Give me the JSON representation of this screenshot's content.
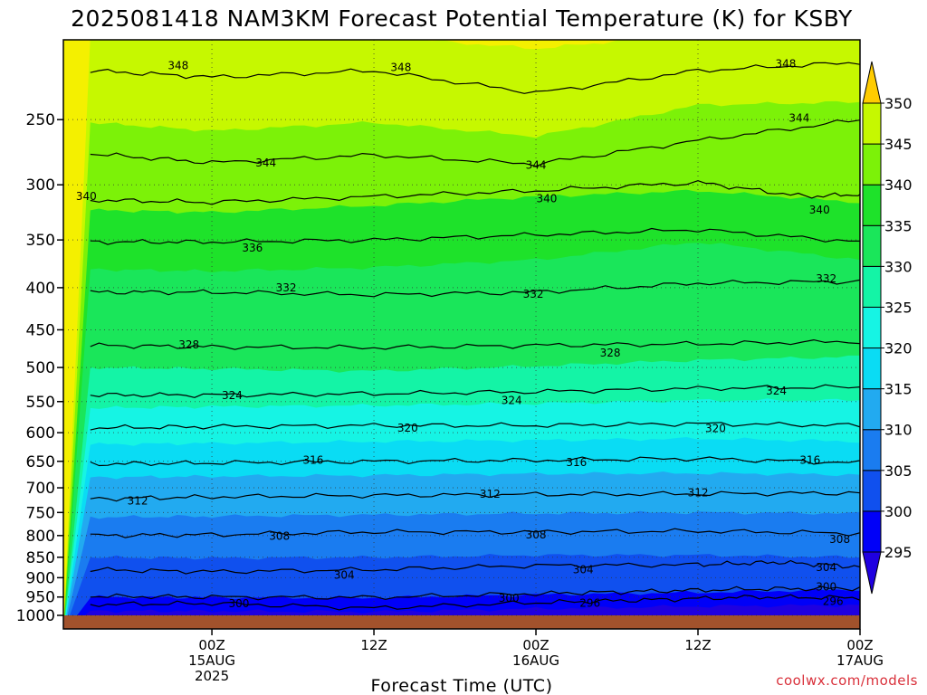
{
  "chart_data": {
    "type": "heatmap",
    "title": "2025081418 NAM3KM Forecast Potential Temperature (K) for KSBY",
    "xlabel": "Forecast Time (UTC)",
    "ylabel": "",
    "y_scale": "log-pressure",
    "y_inverted": true,
    "ylim": [
      1000,
      200
    ],
    "y_ticks": [
      250,
      300,
      350,
      400,
      450,
      500,
      550,
      600,
      650,
      700,
      750,
      800,
      850,
      900,
      950,
      1000
    ],
    "x_range_hours": [
      -5,
      54
    ],
    "x_ticks": [
      {
        "hour": 6,
        "lines": [
          "00Z",
          "15AUG",
          "2025"
        ]
      },
      {
        "hour": 18,
        "lines": [
          "12Z"
        ]
      },
      {
        "hour": 30,
        "lines": [
          "00Z",
          "16AUG"
        ]
      },
      {
        "hour": 42,
        "lines": [
          "12Z"
        ]
      },
      {
        "hour": 54,
        "lines": [
          "00Z",
          "17AUG"
        ]
      }
    ],
    "grid": true,
    "colorbar": {
      "ticks": [
        295,
        300,
        305,
        310,
        315,
        320,
        325,
        330,
        335,
        340,
        345,
        350
      ],
      "levels": [
        290,
        295,
        300,
        305,
        310,
        315,
        320,
        325,
        330,
        335,
        340,
        345,
        350,
        355
      ],
      "colors": [
        "#1f00e0",
        "#0000f8",
        "#1050ee",
        "#1a7cf0",
        "#22aaf0",
        "#0adcf4",
        "#16f4e4",
        "#14f4a6",
        "#1ae65a",
        "#1ee22a",
        "#7cf208",
        "#c6f800",
        "#fff000",
        "#ffcc00"
      ]
    },
    "contour_levels": [
      296,
      300,
      304,
      308,
      312,
      316,
      320,
      324,
      328,
      332,
      336,
      340,
      344,
      348
    ],
    "series": [
      {
        "level": 296,
        "points": [
          [
            -3,
            970
          ],
          [
            6,
            967
          ],
          [
            18,
            980
          ],
          [
            30,
            965
          ],
          [
            38,
            958
          ],
          [
            46,
            950
          ],
          [
            54,
            952
          ],
          [
            56,
            950
          ]
        ]
      },
      {
        "level": 300,
        "points": [
          [
            -3,
            948
          ],
          [
            6,
            950
          ],
          [
            18,
            951
          ],
          [
            30,
            941
          ],
          [
            38,
            935
          ],
          [
            46,
            929
          ],
          [
            54,
            927
          ],
          [
            56,
            925
          ]
        ]
      },
      {
        "level": 304,
        "points": [
          [
            -3,
            880
          ],
          [
            6,
            885
          ],
          [
            18,
            880
          ],
          [
            30,
            870
          ],
          [
            42,
            868
          ],
          [
            48,
            862
          ],
          [
            54,
            873
          ],
          [
            56,
            870
          ]
        ]
      },
      {
        "level": 308,
        "points": [
          [
            -3,
            800
          ],
          [
            6,
            798
          ],
          [
            18,
            792
          ],
          [
            30,
            792
          ],
          [
            42,
            790
          ],
          [
            54,
            795
          ],
          [
            56,
            793
          ]
        ]
      },
      {
        "level": 312,
        "points": [
          [
            -3,
            722
          ],
          [
            6,
            718
          ],
          [
            18,
            715
          ],
          [
            30,
            713
          ],
          [
            42,
            712
          ],
          [
            54,
            710
          ],
          [
            56,
            708
          ]
        ]
      },
      {
        "level": 316,
        "points": [
          [
            -3,
            655
          ],
          [
            6,
            653
          ],
          [
            18,
            650
          ],
          [
            30,
            648
          ],
          [
            42,
            645
          ],
          [
            54,
            653
          ],
          [
            56,
            648
          ]
        ]
      },
      {
        "level": 320,
        "points": [
          [
            -3,
            592
          ],
          [
            6,
            590
          ],
          [
            18,
            588
          ],
          [
            30,
            588
          ],
          [
            42,
            585
          ],
          [
            54,
            588
          ],
          [
            56,
            586
          ]
        ]
      },
      {
        "level": 324,
        "points": [
          [
            -3,
            540
          ],
          [
            6,
            540
          ],
          [
            18,
            538
          ],
          [
            30,
            535
          ],
          [
            42,
            530
          ],
          [
            54,
            528
          ],
          [
            56,
            525
          ]
        ]
      },
      {
        "level": 328,
        "points": [
          [
            -3,
            470
          ],
          [
            6,
            472
          ],
          [
            18,
            473
          ],
          [
            30,
            470
          ],
          [
            42,
            468
          ],
          [
            54,
            465
          ],
          [
            56,
            462
          ]
        ]
      },
      {
        "level": 332,
        "points": [
          [
            -3,
            405
          ],
          [
            6,
            405
          ],
          [
            18,
            408
          ],
          [
            30,
            405
          ],
          [
            42,
            395
          ],
          [
            54,
            393
          ],
          [
            56,
            390
          ]
        ]
      },
      {
        "level": 336,
        "points": [
          [
            -3,
            352
          ],
          [
            6,
            352
          ],
          [
            18,
            350
          ],
          [
            30,
            345
          ],
          [
            42,
            340
          ],
          [
            54,
            352
          ],
          [
            56,
            355
          ]
        ]
      },
      {
        "level": 340,
        "points": [
          [
            -3,
            313
          ],
          [
            6,
            315
          ],
          [
            18,
            310
          ],
          [
            30,
            305
          ],
          [
            42,
            298
          ],
          [
            50,
            310
          ],
          [
            56,
            307
          ]
        ]
      },
      {
        "level": 344,
        "points": [
          [
            -3,
            275
          ],
          [
            6,
            282
          ],
          [
            18,
            276
          ],
          [
            30,
            283
          ],
          [
            42,
            265
          ],
          [
            54,
            250
          ],
          [
            56,
            248
          ]
        ]
      },
      {
        "level": 348,
        "points": [
          [
            -3,
            218
          ],
          [
            6,
            222
          ],
          [
            18,
            218
          ],
          [
            30,
            232
          ],
          [
            42,
            218
          ],
          [
            54,
            213
          ],
          [
            56,
            212
          ]
        ]
      }
    ],
    "contour_labels": [
      {
        "text": "348",
        "hour": 3.5,
        "p": 215
      },
      {
        "text": "348",
        "hour": 20,
        "p": 216
      },
      {
        "text": "348",
        "hour": 48.5,
        "p": 214
      },
      {
        "text": "344",
        "hour": 49.5,
        "p": 249
      },
      {
        "text": "344",
        "hour": 10,
        "p": 282
      },
      {
        "text": "344",
        "hour": 30,
        "p": 284
      },
      {
        "text": "340",
        "hour": -3.3,
        "p": 310
      },
      {
        "text": "340",
        "hour": 30.8,
        "p": 312
      },
      {
        "text": "340",
        "hour": 51,
        "p": 322
      },
      {
        "text": "336",
        "hour": 9,
        "p": 358
      },
      {
        "text": "332",
        "hour": 11.5,
        "p": 400
      },
      {
        "text": "332",
        "hour": 29.8,
        "p": 407
      },
      {
        "text": "332",
        "hour": 51.5,
        "p": 390
      },
      {
        "text": "328",
        "hour": 4.3,
        "p": 469
      },
      {
        "text": "328",
        "hour": 35.5,
        "p": 480
      },
      {
        "text": "324",
        "hour": 7.5,
        "p": 541
      },
      {
        "text": "324",
        "hour": 28.2,
        "p": 548
      },
      {
        "text": "324",
        "hour": 47.8,
        "p": 534
      },
      {
        "text": "320",
        "hour": 20.5,
        "p": 592
      },
      {
        "text": "320",
        "hour": 43.3,
        "p": 593
      },
      {
        "text": "316",
        "hour": 13.5,
        "p": 648
      },
      {
        "text": "316",
        "hour": 33,
        "p": 652
      },
      {
        "text": "316",
        "hour": 50.3,
        "p": 648
      },
      {
        "text": "312",
        "hour": 0.5,
        "p": 726
      },
      {
        "text": "312",
        "hour": 26.6,
        "p": 712
      },
      {
        "text": "312",
        "hour": 42,
        "p": 710
      },
      {
        "text": "308",
        "hour": 11,
        "p": 801
      },
      {
        "text": "308",
        "hour": 30,
        "p": 798
      },
      {
        "text": "308",
        "hour": 52.5,
        "p": 808
      },
      {
        "text": "304",
        "hour": 15.8,
        "p": 894
      },
      {
        "text": "304",
        "hour": 33.5,
        "p": 880
      },
      {
        "text": "304",
        "hour": 51.5,
        "p": 875
      },
      {
        "text": "300",
        "hour": 8,
        "p": 968
      },
      {
        "text": "300",
        "hour": 28,
        "p": 953
      },
      {
        "text": "300",
        "hour": 51.5,
        "p": 923
      },
      {
        "text": "296",
        "hour": 34,
        "p": 966
      },
      {
        "text": "296",
        "hour": 52,
        "p": 961
      }
    ],
    "background_bands": [
      {
        "upper": 295,
        "points": [
          [
            -3,
            988
          ],
          [
            6,
            988
          ],
          [
            18,
            990
          ],
          [
            30,
            982
          ],
          [
            42,
            975
          ],
          [
            54,
            972
          ],
          [
            56,
            970
          ]
        ]
      },
      {
        "upper": 300,
        "points": [
          [
            -3,
            950
          ],
          [
            6,
            951
          ],
          [
            18,
            952
          ],
          [
            30,
            944
          ],
          [
            42,
            938
          ],
          [
            54,
            930
          ],
          [
            56,
            928
          ]
        ]
      },
      {
        "upper": 305,
        "points": [
          [
            -3,
            850
          ],
          [
            6,
            852
          ],
          [
            18,
            850
          ],
          [
            30,
            845
          ],
          [
            42,
            845
          ],
          [
            54,
            850
          ],
          [
            56,
            848
          ]
        ]
      },
      {
        "upper": 310,
        "points": [
          [
            -3,
            760
          ],
          [
            6,
            758
          ],
          [
            18,
            755
          ],
          [
            30,
            752
          ],
          [
            42,
            750
          ],
          [
            54,
            752
          ],
          [
            56,
            750
          ]
        ]
      },
      {
        "upper": 315,
        "points": [
          [
            -3,
            680
          ],
          [
            6,
            678
          ],
          [
            18,
            676
          ],
          [
            30,
            673
          ],
          [
            42,
            672
          ],
          [
            54,
            675
          ],
          [
            56,
            672
          ]
        ]
      },
      {
        "upper": 320,
        "points": [
          [
            -3,
            620
          ],
          [
            6,
            618
          ],
          [
            18,
            615
          ],
          [
            30,
            613
          ],
          [
            42,
            610
          ],
          [
            54,
            615
          ],
          [
            56,
            612
          ]
        ]
      },
      {
        "upper": 325,
        "points": [
          [
            -3,
            560
          ],
          [
            6,
            558
          ],
          [
            18,
            556
          ],
          [
            30,
            553
          ],
          [
            42,
            548
          ],
          [
            54,
            548
          ],
          [
            56,
            545
          ]
        ]
      },
      {
        "upper": 330,
        "points": [
          [
            -3,
            500
          ],
          [
            6,
            502
          ],
          [
            18,
            505
          ],
          [
            30,
            498
          ],
          [
            42,
            490
          ],
          [
            54,
            485
          ],
          [
            56,
            480
          ]
        ]
      },
      {
        "upper": 335,
        "points": [
          [
            -3,
            380
          ],
          [
            6,
            382
          ],
          [
            18,
            378
          ],
          [
            30,
            370
          ],
          [
            42,
            352
          ],
          [
            54,
            370
          ],
          [
            56,
            378
          ]
        ]
      },
      {
        "upper": 340,
        "points": [
          [
            -3,
            322
          ],
          [
            6,
            324
          ],
          [
            18,
            318
          ],
          [
            30,
            310
          ],
          [
            42,
            305
          ],
          [
            54,
            315
          ],
          [
            56,
            312
          ]
        ]
      },
      {
        "upper": 345,
        "points": [
          [
            -3,
            252
          ],
          [
            6,
            258
          ],
          [
            18,
            252
          ],
          [
            30,
            262
          ],
          [
            42,
            240
          ],
          [
            54,
            238
          ],
          [
            56,
            238
          ]
        ]
      },
      {
        "upper": 350,
        "points": [
          [
            -3,
            198
          ],
          [
            6,
            198
          ],
          [
            18,
            198
          ],
          [
            30,
            205
          ],
          [
            40,
            198
          ],
          [
            56,
            198
          ]
        ]
      }
    ],
    "surface": {
      "color": "#a2522c"
    }
  },
  "credit": "coolwx.com/models"
}
